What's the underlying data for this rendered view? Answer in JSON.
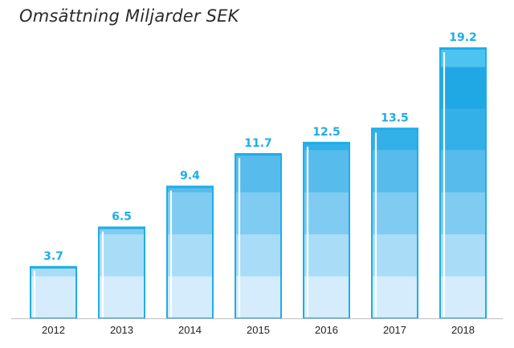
{
  "chart_data": {
    "type": "bar",
    "title": "Omsättning Miljarder SEK",
    "categories": [
      "2012",
      "2013",
      "2014",
      "2015",
      "2016",
      "2017",
      "2018"
    ],
    "values": [
      3.7,
      6.5,
      9.4,
      11.7,
      12.5,
      13.5,
      19.2
    ],
    "value_labels": [
      "3.7",
      "6.5",
      "9.4",
      "11.7",
      "12.5",
      "13.5",
      "19.2"
    ],
    "xlabel": "",
    "ylabel": "",
    "ylim": [
      0,
      19.2
    ],
    "grid": false,
    "legend": "none"
  },
  "colors": {
    "outline": "#1eaee6",
    "label": "#1eaee6",
    "bands": [
      "#d4ecfb",
      "#a9dcf6",
      "#7fcbf1",
      "#57bcec",
      "#34b0e8",
      "#20a8e4",
      "#4cc3f0"
    ],
    "axis": "#bfbfbf",
    "highlight": "#ffffff"
  }
}
